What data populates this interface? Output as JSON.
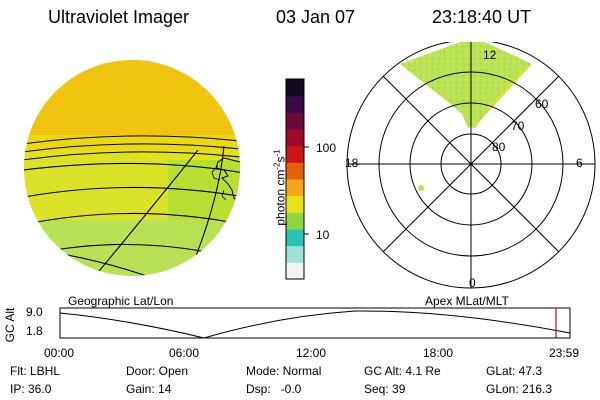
{
  "header": {
    "title": "Ultraviolet Imager",
    "date": "03 Jan 07",
    "time": "23:18:40 UT"
  },
  "colorbar": {
    "label": "photon cm",
    "label_sup1": "-2",
    "label_mid": "s",
    "label_sup2": "-1",
    "tick_high": "100",
    "tick_low": "10",
    "colors": [
      "#f2f2f2",
      "#9fe3d8",
      "#29c3b0",
      "#8ed63c",
      "#e8e419",
      "#f2a816",
      "#e5600b",
      "#c91515",
      "#9e0b2a",
      "#6a0a3c",
      "#3b0a44",
      "#140a20"
    ]
  },
  "left_map": {
    "caption": "Geographic Lat/Lon",
    "colors": {
      "orange": "#f4c300",
      "yellow": "#efe000",
      "green": "#c8e650",
      "lime": "#9fdc3c"
    }
  },
  "polar_plot": {
    "caption": "Apex MLat/MLT",
    "mlt_labels": {
      "top": "12",
      "left": "18",
      "right": "6",
      "bottom": "0"
    },
    "lat_labels": [
      "80",
      "70",
      "60"
    ]
  },
  "timeline": {
    "y_axis_label": "GC Alt",
    "y_max_label": "9.0",
    "y_min_label": "1.8",
    "x_labels": [
      "00:00",
      "06:00",
      "12:00",
      "18:00",
      "23:59"
    ],
    "marker_color": "#cc0000"
  },
  "status": {
    "row1": {
      "filter": "Flt: LBHL",
      "door": "Door: Open",
      "mode": "Mode: Normal",
      "gc_alt": "GC Alt: 4.1 Re",
      "glat": "GLat: 47.3"
    },
    "row2": {
      "ip": "IP: 36.0",
      "gain": "Gain: 14",
      "dsp": "Dsp:   -0.0",
      "seq": "Seq: 39",
      "glon": "GLon: 216.3"
    }
  }
}
